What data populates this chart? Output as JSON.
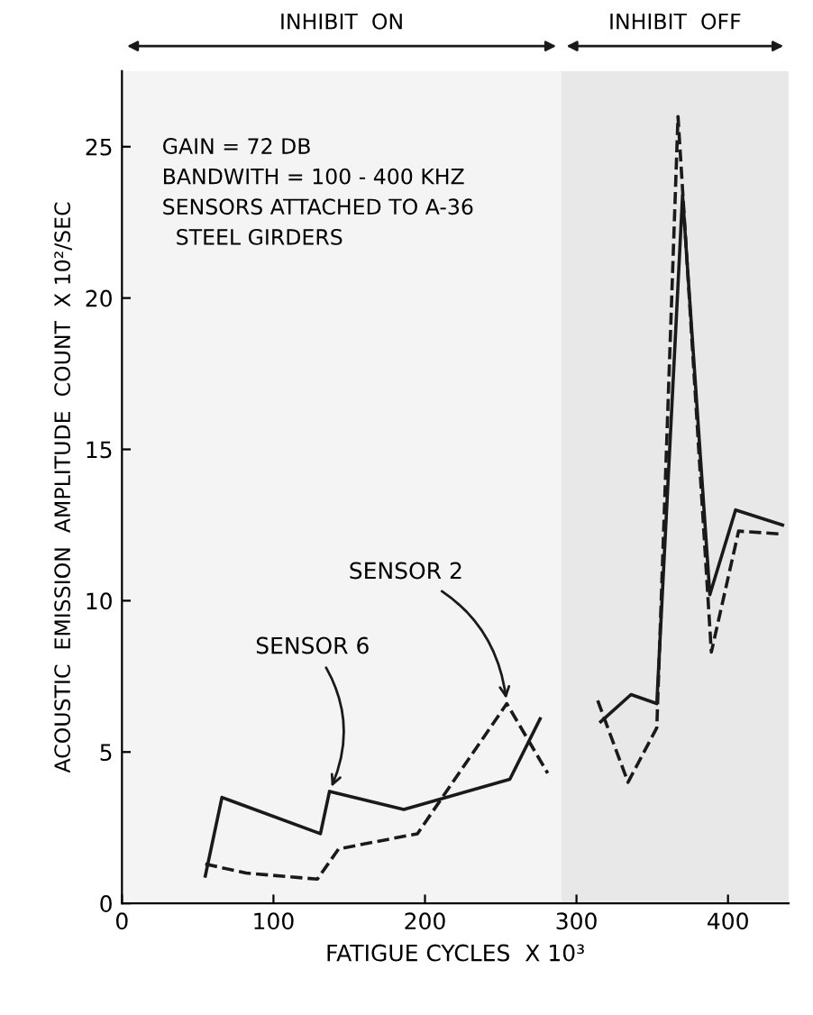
{
  "chart_data": {
    "type": "line",
    "xlabel": "FATIGUE CYCLES  X 10³",
    "ylabel": "ACOUSTIC  EMISSION  AMPLITUDE  COUNT  X 10²/SEC",
    "xlim": [
      0,
      440
    ],
    "ylim": [
      0,
      27.5
    ],
    "xticks": [
      0,
      100,
      200,
      300,
      400
    ],
    "yticks": [
      0,
      5,
      10,
      15,
      20,
      25
    ],
    "grid": false,
    "marker": "none",
    "series": [
      {
        "name": "SENSOR 6",
        "color": "#1a1a1a",
        "line_style": "solid",
        "x": [
          55,
          66,
          131,
          137,
          186,
          256,
          276,
          null,
          316,
          336,
          353,
          370,
          388,
          405,
          436
        ],
        "values": [
          0.9,
          3.5,
          2.3,
          3.7,
          3.1,
          4.1,
          6.1,
          null,
          6.0,
          6.9,
          6.6,
          23.4,
          10.2,
          13.0,
          12.5
        ]
      },
      {
        "name": "SENSOR 2",
        "color": "#1a1a1a",
        "line_style": "dashed",
        "x": [
          55,
          82,
          129,
          143,
          195,
          254,
          281,
          null,
          314,
          334,
          353,
          367,
          389,
          407,
          436
        ],
        "values": [
          1.3,
          1.0,
          0.8,
          1.8,
          2.3,
          6.6,
          4.3,
          null,
          6.7,
          4.0,
          5.8,
          26.0,
          8.3,
          12.3,
          12.2
        ]
      }
    ],
    "bands": [
      {
        "axis": "x",
        "from": 0,
        "to": 290,
        "label": "INHIBIT  ON",
        "color": "#f4f4f4"
      },
      {
        "axis": "x",
        "from": 290,
        "to": 440,
        "label": "INHIBIT  OFF",
        "color": "#e8e8e8"
      }
    ],
    "annotations": [
      "GAIN = 72 DB\nBANDWITH = 100 - 400 KHZ\nSENSORS ATTACHED TO A-36\n  STEEL GIRDERS"
    ]
  }
}
